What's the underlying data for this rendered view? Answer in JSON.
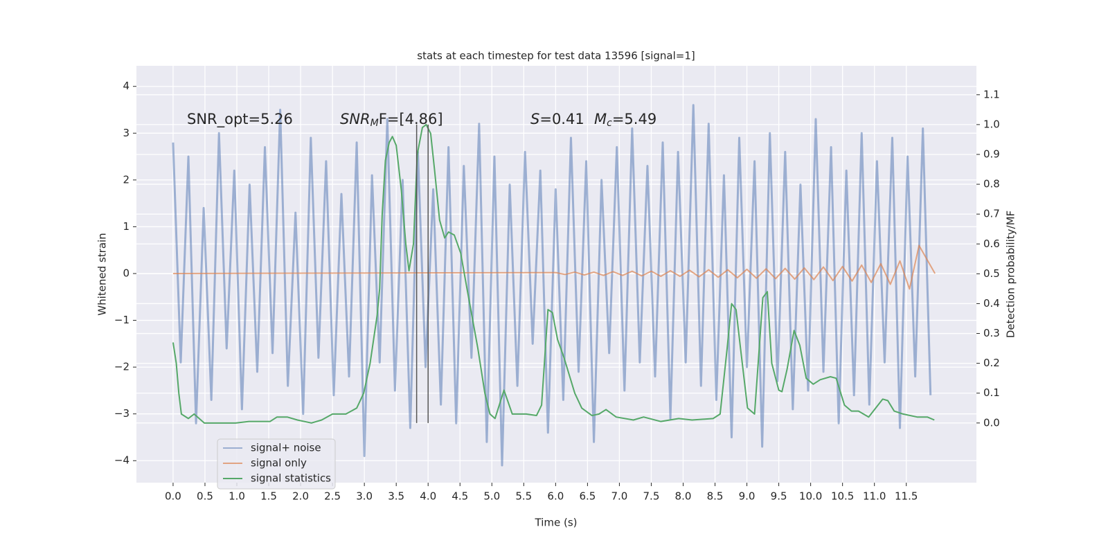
{
  "chart_data": {
    "type": "line",
    "title": "stats at each timestep for test data 13596 [signal=1]",
    "xlabel": "Time (s)",
    "ylabel": "Whitened strain",
    "y2label": "Detection probability/MF",
    "xlim": [
      -0.575,
      12.6
    ],
    "ylim": [
      -4.47,
      4.44
    ],
    "y2lim": [
      -0.2,
      1.197
    ],
    "grid": true,
    "legend_loc": "lower left",
    "xticks": [
      {
        "value": 0,
        "label": "0.0"
      },
      {
        "value": 0.5,
        "label": "0.5"
      },
      {
        "value": 1,
        "label": "1.0"
      },
      {
        "value": 1.5,
        "label": "1.5"
      },
      {
        "value": 2,
        "label": "2.0"
      },
      {
        "value": 2.5,
        "label": "2.5"
      },
      {
        "value": 3,
        "label": "3.0"
      },
      {
        "value": 3.5,
        "label": "3.5"
      },
      {
        "value": 4,
        "label": "4.0"
      },
      {
        "value": 4.5,
        "label": "4.5"
      },
      {
        "value": 5,
        "label": "5.0"
      },
      {
        "value": 5.5,
        "label": "5.5"
      },
      {
        "value": 6,
        "label": "6.0"
      },
      {
        "value": 6.5,
        "label": "6.5"
      },
      {
        "value": 7,
        "label": "7.0"
      },
      {
        "value": 7.5,
        "label": "7.5"
      },
      {
        "value": 8,
        "label": "8.0"
      },
      {
        "value": 8.5,
        "label": "8.5"
      },
      {
        "value": 9,
        "label": "9.0"
      },
      {
        "value": 9.5,
        "label": "9.5"
      },
      {
        "value": 10,
        "label": "10.0"
      },
      {
        "value": 10.5,
        "label": "10.5"
      },
      {
        "value": 11,
        "label": "11.0"
      },
      {
        "value": 11.5,
        "label": "11.5"
      }
    ],
    "yticks": [
      {
        "value": -4,
        "label": "−4"
      },
      {
        "value": -3,
        "label": "−3"
      },
      {
        "value": -2,
        "label": "−2"
      },
      {
        "value": -1,
        "label": "−1"
      },
      0,
      1,
      2,
      3,
      4
    ],
    "y2ticks": [
      {
        "value": 0,
        "label": "0.0"
      },
      {
        "value": 0.1,
        "label": "0.1"
      },
      {
        "value": 0.2,
        "label": "0.2"
      },
      {
        "value": 0.3,
        "label": "0.3"
      },
      {
        "value": 0.4,
        "label": "0.4"
      },
      {
        "value": 0.5,
        "label": "0.5"
      },
      {
        "value": 0.6,
        "label": "0.6"
      },
      {
        "value": 0.7,
        "label": "0.7"
      },
      {
        "value": 0.8,
        "label": "0.8"
      },
      {
        "value": 0.9,
        "label": "0.9"
      },
      {
        "value": 1,
        "label": "1.0"
      },
      {
        "value": 1.1,
        "label": "1.1"
      }
    ],
    "annotations": [
      [
        {
          "text": "SNR_opt=5.26"
        }
      ],
      [
        {
          "text": "SNR",
          "italic": true
        },
        {
          "text": "M",
          "italic": true,
          "sub": true
        },
        {
          "text": "F=[4.86]"
        }
      ],
      [
        {
          "text": "S",
          "italic": true
        },
        {
          "text": "=0.41"
        }
      ],
      [
        {
          "text": "M",
          "italic": true
        },
        {
          "text": "c",
          "italic": true,
          "sub": true
        },
        {
          "text": "=5.49"
        }
      ]
    ],
    "vlines": [
      {
        "x": 3.82,
        "ymin": 0,
        "ymax": 1.0,
        "color": "#555555"
      },
      {
        "x": 4.0,
        "ymin": 0,
        "ymax": 1.0,
        "color": "#555555"
      }
    ],
    "series": [
      {
        "name": "signal+ noise",
        "color": "#4c72b0",
        "opacity": 0.5,
        "x": [
          0,
          0.12,
          0.24,
          0.36,
          0.48,
          0.6,
          0.72,
          0.84,
          0.96,
          1.08,
          1.2,
          1.32,
          1.44,
          1.56,
          1.68,
          1.8,
          1.92,
          2.04,
          2.16,
          2.28,
          2.4,
          2.52,
          2.64,
          2.76,
          2.88,
          3.0,
          3.12,
          3.24,
          3.36,
          3.48,
          3.6,
          3.72,
          3.84,
          3.96,
          4.08,
          4.2,
          4.32,
          4.44,
          4.56,
          4.68,
          4.8,
          4.92,
          5.04,
          5.16,
          5.28,
          5.4,
          5.52,
          5.64,
          5.76,
          5.88,
          6.0,
          6.12,
          6.24,
          6.36,
          6.48,
          6.6,
          6.72,
          6.84,
          6.96,
          7.08,
          7.2,
          7.32,
          7.44,
          7.56,
          7.68,
          7.8,
          7.92,
          8.04,
          8.16,
          8.28,
          8.4,
          8.52,
          8.64,
          8.76,
          8.88,
          9.0,
          9.12,
          9.24,
          9.36,
          9.48,
          9.6,
          9.72,
          9.84,
          9.96,
          10.08,
          10.2,
          10.32,
          10.44,
          10.56,
          10.68,
          10.8,
          10.92,
          11.04,
          11.16,
          11.28,
          11.4,
          11.52,
          11.64,
          11.76,
          11.88
        ],
        "values": [
          2.8,
          -1.9,
          2.5,
          -3.2,
          1.4,
          -2.7,
          3.0,
          -1.6,
          2.2,
          -2.9,
          1.9,
          -2.1,
          2.7,
          -1.7,
          3.5,
          -2.4,
          1.3,
          -3.0,
          2.9,
          -1.8,
          2.4,
          -2.6,
          1.7,
          -2.2,
          2.8,
          -3.9,
          2.1,
          -1.9,
          3.3,
          -2.5,
          2.0,
          -3.3,
          2.6,
          -2.0,
          1.8,
          -2.8,
          2.7,
          -3.2,
          2.3,
          -1.8,
          3.2,
          -3.6,
          2.5,
          -4.1,
          1.9,
          -2.4,
          2.6,
          -1.5,
          2.2,
          -3.4,
          1.8,
          -2.7,
          2.9,
          -2.1,
          2.4,
          -3.6,
          2.0,
          -1.7,
          2.7,
          -2.5,
          3.1,
          -1.9,
          2.3,
          -2.2,
          2.8,
          -3.1,
          2.6,
          -1.9,
          3.6,
          -2.4,
          3.2,
          -2.7,
          2.1,
          -3.5,
          2.9,
          -2.0,
          2.4,
          -3.7,
          3.0,
          -2.3,
          2.6,
          -2.9,
          1.9,
          -2.5,
          3.3,
          -2.1,
          2.7,
          -3.2,
          2.2,
          -2.6,
          3.0,
          -2.8,
          2.4,
          -1.9,
          2.9,
          -3.3,
          2.5,
          -2.2,
          3.1,
          -2.6
        ]
      },
      {
        "name": "signal only",
        "color": "#dd8452",
        "opacity": 0.7,
        "x": [
          0,
          6.0,
          6.15,
          6.3,
          6.45,
          6.6,
          6.75,
          6.9,
          7.05,
          7.2,
          7.35,
          7.5,
          7.65,
          7.8,
          7.95,
          8.1,
          8.25,
          8.4,
          8.55,
          8.7,
          8.85,
          9.0,
          9.15,
          9.3,
          9.45,
          9.6,
          9.75,
          9.9,
          10.05,
          10.2,
          10.35,
          10.5,
          10.65,
          10.8,
          10.95,
          11.1,
          11.25,
          11.4,
          11.55,
          11.7,
          11.95
        ],
        "values": [
          0,
          0.02,
          -0.02,
          0.03,
          -0.03,
          0.03,
          -0.04,
          0.04,
          -0.04,
          0.05,
          -0.05,
          0.05,
          -0.06,
          0.06,
          -0.06,
          0.07,
          -0.07,
          0.08,
          -0.08,
          0.08,
          -0.09,
          0.09,
          -0.1,
          0.1,
          -0.11,
          0.11,
          -0.12,
          0.12,
          -0.13,
          0.14,
          -0.15,
          0.15,
          -0.16,
          0.18,
          -0.19,
          0.21,
          -0.23,
          0.27,
          -0.33,
          0.6,
          0
        ]
      },
      {
        "name": "signal statistics",
        "color": "#55a868",
        "opacity": 1,
        "axis": "y2",
        "x": [
          0,
          0.05,
          0.09,
          0.13,
          0.24,
          0.33,
          0.49,
          0.65,
          0.98,
          1.19,
          1.52,
          1.63,
          1.79,
          1.95,
          2.17,
          2.33,
          2.5,
          2.71,
          2.88,
          2.99,
          3.09,
          3.2,
          3.24,
          3.28,
          3.33,
          3.39,
          3.44,
          3.5,
          3.58,
          3.65,
          3.7,
          3.77,
          3.83,
          3.91,
          3.97,
          4.04,
          4.1,
          4.18,
          4.26,
          4.32,
          4.41,
          4.51,
          4.61,
          4.78,
          4.89,
          4.97,
          5.05,
          5.19,
          5.32,
          5.54,
          5.7,
          5.78,
          5.88,
          5.95,
          6.03,
          6.13,
          6.3,
          6.41,
          6.57,
          6.68,
          6.79,
          6.95,
          7.22,
          7.38,
          7.65,
          7.93,
          8.14,
          8.47,
          8.58,
          8.69,
          8.76,
          8.83,
          8.9,
          9.01,
          9.12,
          9.25,
          9.32,
          9.39,
          9.5,
          9.55,
          9.63,
          9.74,
          9.83,
          9.93,
          10.04,
          10.15,
          10.31,
          10.4,
          10.53,
          10.64,
          10.75,
          10.91,
          11.02,
          11.13,
          11.21,
          11.31,
          11.45,
          11.67,
          11.83,
          11.94
        ],
        "values": [
          0.27,
          0.2,
          0.1,
          0.03,
          0.015,
          0.03,
          0.0,
          0.0,
          0.0,
          0.005,
          0.005,
          0.02,
          0.02,
          0.01,
          0.0,
          0.01,
          0.03,
          0.03,
          0.05,
          0.1,
          0.2,
          0.36,
          0.45,
          0.7,
          0.88,
          0.94,
          0.96,
          0.93,
          0.78,
          0.6,
          0.51,
          0.6,
          0.9,
          0.99,
          1.0,
          0.97,
          0.85,
          0.68,
          0.62,
          0.64,
          0.63,
          0.57,
          0.45,
          0.25,
          0.1,
          0.03,
          0.015,
          0.11,
          0.03,
          0.03,
          0.025,
          0.06,
          0.38,
          0.37,
          0.28,
          0.22,
          0.1,
          0.05,
          0.025,
          0.03,
          0.045,
          0.02,
          0.01,
          0.02,
          0.005,
          0.015,
          0.01,
          0.015,
          0.03,
          0.25,
          0.4,
          0.38,
          0.25,
          0.05,
          0.03,
          0.42,
          0.44,
          0.2,
          0.11,
          0.105,
          0.18,
          0.31,
          0.26,
          0.15,
          0.13,
          0.145,
          0.155,
          0.15,
          0.06,
          0.04,
          0.04,
          0.02,
          0.05,
          0.08,
          0.075,
          0.04,
          0.03,
          0.02,
          0.02,
          0.01
        ]
      }
    ]
  }
}
